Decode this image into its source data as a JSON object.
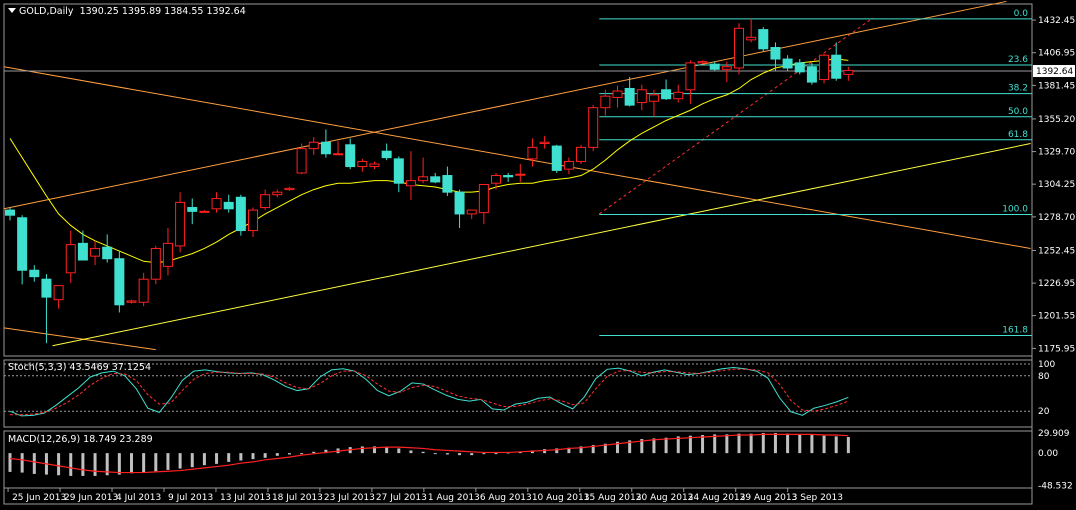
{
  "header": {
    "symbol": "GOLD,Daily",
    "ohlc": "1390.25 1395.89 1384.55 1392.64",
    "stoch_label": "Stoch(5,3,3) 43.5469 37.1254",
    "macd_label": "MACD(12,26,9) 18.749 23.289"
  },
  "colors": {
    "background": "#000000",
    "bull_candle": "#000000",
    "bull_border": "#ff2020",
    "bear_candle": "#40e0d0",
    "ma": "#ffff00",
    "trendline": "#ffa040",
    "support_line": "#ffff40",
    "fibo": "#40e0d0",
    "stoch_main": "#40e0d0",
    "stoch_signal": "#ff3030",
    "macd_hist": "#c0c0c0",
    "macd_signal": "#ff2020",
    "price_tag": "#ffffff"
  },
  "chart_data": [
    {
      "type": "candlestick",
      "price_axis": [
        "1432.45",
        "1406.95",
        "1381.45",
        "1355.20",
        "1329.70",
        "1304.25",
        "1278.70",
        "1252.45",
        "1226.95",
        "1201.55",
        "1175.95"
      ],
      "ylim": [
        1170,
        1445
      ],
      "current_price": "1392.64",
      "date_labels": [
        "25 Jun 2013",
        "29 Jun 2013",
        "4 Jul 2013",
        "9 Jul 2013",
        "13 Jul 2013",
        "18 Jul 2013",
        "23 Jul 2013",
        "27 Jul 2013",
        "1 Aug 2013",
        "6 Aug 2013",
        "10 Aug 2013",
        "15 Aug 2013",
        "20 Aug 2013",
        "24 Aug 2013",
        "29 Aug 2013",
        "3 Sep 2013"
      ],
      "candles": [
        {
          "o": 1284,
          "h": 1286,
          "l": 1276,
          "c": 1280
        },
        {
          "o": 1278,
          "h": 1280,
          "l": 1226,
          "c": 1237
        },
        {
          "o": 1237,
          "h": 1241,
          "l": 1228,
          "c": 1232
        },
        {
          "o": 1230,
          "h": 1234,
          "l": 1180,
          "c": 1216
        },
        {
          "o": 1214,
          "h": 1225,
          "l": 1207,
          "c": 1225
        },
        {
          "o": 1235,
          "h": 1268,
          "l": 1227,
          "c": 1257
        },
        {
          "o": 1258,
          "h": 1268,
          "l": 1245,
          "c": 1245
        },
        {
          "o": 1248,
          "h": 1260,
          "l": 1241,
          "c": 1254
        },
        {
          "o": 1255,
          "h": 1265,
          "l": 1243,
          "c": 1246
        },
        {
          "o": 1246,
          "h": 1252,
          "l": 1204,
          "c": 1210
        },
        {
          "o": 1212,
          "h": 1214,
          "l": 1211,
          "c": 1213
        },
        {
          "o": 1212,
          "h": 1235,
          "l": 1209,
          "c": 1230
        },
        {
          "o": 1230,
          "h": 1256,
          "l": 1226,
          "c": 1254
        },
        {
          "o": 1240,
          "h": 1270,
          "l": 1233,
          "c": 1258
        },
        {
          "o": 1256,
          "h": 1298,
          "l": 1251,
          "c": 1290
        },
        {
          "o": 1286,
          "h": 1293,
          "l": 1273,
          "c": 1283
        },
        {
          "o": 1283,
          "h": 1284,
          "l": 1282,
          "c": 1283
        },
        {
          "o": 1285,
          "h": 1298,
          "l": 1282,
          "c": 1293
        },
        {
          "o": 1290,
          "h": 1296,
          "l": 1282,
          "c": 1285
        },
        {
          "o": 1294,
          "h": 1296,
          "l": 1264,
          "c": 1268
        },
        {
          "o": 1268,
          "h": 1286,
          "l": 1263,
          "c": 1284
        },
        {
          "o": 1286,
          "h": 1300,
          "l": 1284,
          "c": 1296
        },
        {
          "o": 1296,
          "h": 1300,
          "l": 1294,
          "c": 1298
        },
        {
          "o": 1300,
          "h": 1302,
          "l": 1299,
          "c": 1301
        },
        {
          "o": 1313,
          "h": 1336,
          "l": 1312,
          "c": 1332
        },
        {
          "o": 1332,
          "h": 1341,
          "l": 1327,
          "c": 1337
        },
        {
          "o": 1337,
          "h": 1347,
          "l": 1325,
          "c": 1328
        },
        {
          "o": 1328,
          "h": 1338,
          "l": 1327,
          "c": 1328
        },
        {
          "o": 1335,
          "h": 1340,
          "l": 1316,
          "c": 1318
        },
        {
          "o": 1318,
          "h": 1324,
          "l": 1314,
          "c": 1322
        },
        {
          "o": 1318,
          "h": 1322,
          "l": 1316,
          "c": 1320
        },
        {
          "o": 1330,
          "h": 1336,
          "l": 1323,
          "c": 1325
        },
        {
          "o": 1324,
          "h": 1326,
          "l": 1298,
          "c": 1305
        },
        {
          "o": 1303,
          "h": 1330,
          "l": 1292,
          "c": 1307
        },
        {
          "o": 1307,
          "h": 1325,
          "l": 1305,
          "c": 1310
        },
        {
          "o": 1310,
          "h": 1313,
          "l": 1305,
          "c": 1306
        },
        {
          "o": 1311,
          "h": 1318,
          "l": 1295,
          "c": 1298
        },
        {
          "o": 1298,
          "h": 1300,
          "l": 1270,
          "c": 1281
        },
        {
          "o": 1281,
          "h": 1284,
          "l": 1277,
          "c": 1284
        },
        {
          "o": 1282,
          "h": 1304,
          "l": 1273,
          "c": 1304
        },
        {
          "o": 1305,
          "h": 1313,
          "l": 1300,
          "c": 1311
        },
        {
          "o": 1311,
          "h": 1313,
          "l": 1306,
          "c": 1310
        },
        {
          "o": 1312,
          "h": 1320,
          "l": 1306,
          "c": 1312
        },
        {
          "o": 1324,
          "h": 1340,
          "l": 1318,
          "c": 1333
        },
        {
          "o": 1336,
          "h": 1342,
          "l": 1332,
          "c": 1337
        },
        {
          "o": 1334,
          "h": 1335,
          "l": 1313,
          "c": 1315
        },
        {
          "o": 1316,
          "h": 1325,
          "l": 1312,
          "c": 1322
        },
        {
          "o": 1322,
          "h": 1335,
          "l": 1320,
          "c": 1333
        },
        {
          "o": 1333,
          "h": 1366,
          "l": 1330,
          "c": 1364
        },
        {
          "o": 1364,
          "h": 1378,
          "l": 1358,
          "c": 1373
        },
        {
          "o": 1372,
          "h": 1381,
          "l": 1364,
          "c": 1377
        },
        {
          "o": 1379,
          "h": 1388,
          "l": 1365,
          "c": 1366
        },
        {
          "o": 1368,
          "h": 1382,
          "l": 1362,
          "c": 1378
        },
        {
          "o": 1369,
          "h": 1378,
          "l": 1357,
          "c": 1374
        },
        {
          "o": 1378,
          "h": 1386,
          "l": 1370,
          "c": 1371
        },
        {
          "o": 1371,
          "h": 1382,
          "l": 1368,
          "c": 1376
        },
        {
          "o": 1378,
          "h": 1401,
          "l": 1367,
          "c": 1399
        },
        {
          "o": 1399,
          "h": 1401,
          "l": 1398,
          "c": 1400
        },
        {
          "o": 1398,
          "h": 1400,
          "l": 1393,
          "c": 1394
        },
        {
          "o": 1394,
          "h": 1400,
          "l": 1384,
          "c": 1396
        },
        {
          "o": 1395,
          "h": 1430,
          "l": 1390,
          "c": 1426
        },
        {
          "o": 1417,
          "h": 1434,
          "l": 1415,
          "c": 1419
        },
        {
          "o": 1425,
          "h": 1427,
          "l": 1408,
          "c": 1410
        },
        {
          "o": 1411,
          "h": 1415,
          "l": 1393,
          "c": 1402
        },
        {
          "o": 1402,
          "h": 1405,
          "l": 1393,
          "c": 1395
        },
        {
          "o": 1399,
          "h": 1402,
          "l": 1390,
          "c": 1392
        },
        {
          "o": 1396,
          "h": 1399,
          "l": 1382,
          "c": 1384
        },
        {
          "o": 1386,
          "h": 1406,
          "l": 1383,
          "c": 1405
        },
        {
          "o": 1405,
          "h": 1415,
          "l": 1385,
          "c": 1387
        },
        {
          "o": 1390,
          "h": 1396,
          "l": 1385,
          "c": 1393
        }
      ],
      "moving_average": [
        1340,
        1325,
        1310,
        1295,
        1281,
        1272,
        1265,
        1260,
        1256,
        1252,
        1248,
        1244,
        1243,
        1244,
        1247,
        1250,
        1254,
        1259,
        1265,
        1270,
        1275,
        1281,
        1286,
        1291,
        1296,
        1300,
        1303,
        1305,
        1305,
        1306,
        1307,
        1307,
        1306,
        1304,
        1303,
        1302,
        1300,
        1298,
        1298,
        1299,
        1302,
        1304,
        1305,
        1305,
        1307,
        1308,
        1309,
        1311,
        1316,
        1323,
        1331,
        1338,
        1344,
        1349,
        1354,
        1358,
        1362,
        1367,
        1371,
        1374,
        1379,
        1386,
        1391,
        1395,
        1397,
        1399,
        1400,
        1401,
        1402,
        1401
      ],
      "fibonacci": [
        {
          "label": "0.0",
          "price": 1433.4
        },
        {
          "label": "23.6",
          "price": 1397.3
        },
        {
          "label": "38.2",
          "price": 1375.0
        },
        {
          "label": "50.0",
          "price": 1356.9
        },
        {
          "label": "61.8",
          "price": 1338.9
        },
        {
          "label": "100.0",
          "price": 1280.5
        },
        {
          "label": "161.8",
          "price": 1186.0
        }
      ]
    },
    {
      "type": "line",
      "title": "Stoch(5,3,3)",
      "levels": [
        "100",
        "80",
        "20"
      ],
      "ylim": [
        0,
        100
      ],
      "series": [
        {
          "name": "main",
          "values": [
            20,
            12,
            13,
            17,
            30,
            45,
            60,
            78,
            85,
            88,
            80,
            58,
            25,
            18,
            42,
            72,
            88,
            90,
            87,
            85,
            84,
            85,
            82,
            73,
            62,
            55,
            58,
            78,
            90,
            92,
            88,
            74,
            55,
            46,
            54,
            68,
            66,
            56,
            47,
            40,
            37,
            40,
            24,
            22,
            32,
            35,
            42,
            44,
            33,
            24,
            44,
            75,
            91,
            93,
            88,
            80,
            86,
            90,
            86,
            82,
            84,
            88,
            92,
            94,
            92,
            88,
            76,
            43,
            19,
            13,
            25,
            30,
            36,
            43.5
          ]
        },
        {
          "name": "signal",
          "values": [
            14,
            14,
            15,
            18,
            25,
            35,
            48,
            64,
            76,
            84,
            83,
            72,
            48,
            32,
            34,
            55,
            74,
            84,
            86,
            86,
            84,
            84,
            83,
            78,
            68,
            60,
            58,
            67,
            80,
            88,
            88,
            80,
            66,
            54,
            52,
            60,
            64,
            62,
            54,
            46,
            42,
            40,
            34,
            28,
            28,
            32,
            37,
            41,
            38,
            31,
            34,
            58,
            79,
            88,
            89,
            86,
            85,
            87,
            87,
            85,
            84,
            86,
            89,
            91,
            91,
            90,
            85,
            66,
            38,
            22,
            20,
            24,
            30,
            37.1
          ]
        }
      ]
    },
    {
      "type": "bar",
      "title": "MACD(12,26,9)",
      "price_axis": [
        "29.909",
        "0.00",
        "-48.532"
      ],
      "ylim": [
        -52,
        33
      ],
      "series": [
        {
          "name": "histogram",
          "values": [
            -28,
            -29,
            -31,
            -32,
            -33,
            -34,
            -34,
            -34,
            -33,
            -32,
            -30,
            -29,
            -27,
            -25,
            -23,
            -21,
            -18,
            -16,
            -13,
            -11,
            -9,
            -7,
            -4,
            -2,
            0,
            2,
            5,
            7,
            9,
            10,
            10,
            9,
            7,
            4,
            2,
            0,
            -2,
            -3,
            -3,
            -1,
            0,
            1,
            2,
            4,
            6,
            7,
            8,
            10,
            12,
            14,
            17,
            19,
            21,
            22,
            23,
            25,
            26,
            27,
            28,
            28,
            29,
            29,
            30,
            30,
            29,
            28,
            27,
            26,
            25,
            24
          ]
        },
        {
          "name": "signal",
          "values": [
            -8,
            -10,
            -13,
            -16,
            -19,
            -22,
            -25,
            -27,
            -28,
            -29,
            -29,
            -29,
            -28,
            -27,
            -26,
            -24,
            -22,
            -20,
            -18,
            -15,
            -13,
            -10,
            -8,
            -6,
            -3,
            -1,
            1,
            3,
            5,
            7,
            8,
            9,
            9,
            8,
            7,
            5,
            4,
            3,
            2,
            1,
            1,
            1,
            2,
            3,
            4,
            5,
            7,
            8,
            10,
            12,
            14,
            16,
            18,
            20,
            21,
            22,
            23,
            24,
            25,
            26,
            27,
            27,
            28,
            28,
            28,
            28,
            28,
            27,
            27,
            26
          ]
        }
      ]
    }
  ]
}
